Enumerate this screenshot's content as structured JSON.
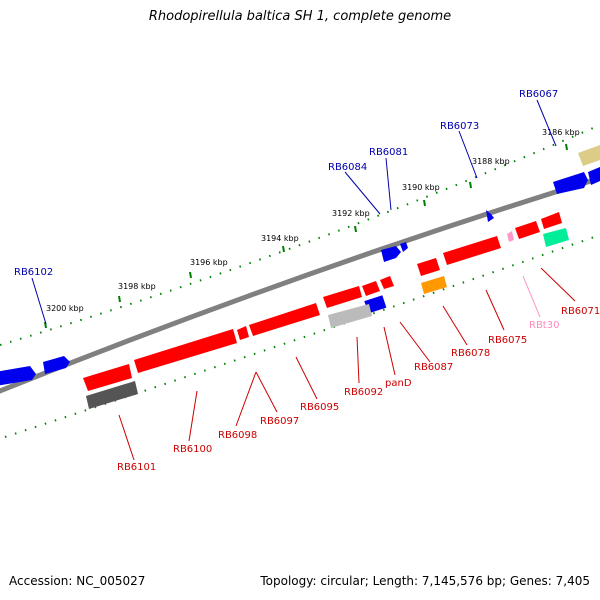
{
  "title": "Rhodopirellula baltica SH 1, complete genome",
  "footer": {
    "accession": "Accession: NC_005027",
    "summary": "Topology: circular; Length: 7,145,576 bp; Genes: 7,405"
  },
  "colors": {
    "backbone": "#808080",
    "forward_gene": "#0000ff",
    "reverse_gene": "#ff0000",
    "gray_feature": "#555555",
    "light_gray_feature": "#bbbbbb",
    "orange_feature": "#ff9900",
    "green_feature": "#00ee99",
    "pink_feature": "#ff99cc",
    "tan_feature": "#ddcc88",
    "tick_dots": "#008000",
    "forward_label": "#0000aa",
    "reverse_label": "#cc0000",
    "rna_label": "#ff88bb"
  },
  "ruler": {
    "ticks": [
      "3200 kbp",
      "3198 kbp",
      "3196 kbp",
      "3194 kbp",
      "3192 kbp",
      "3190 kbp",
      "3188 kbp",
      "3186 kbp"
    ]
  },
  "labels": {
    "forward": [
      "RB6102",
      "RB6084",
      "RB6081",
      "RB6073",
      "RB6067"
    ],
    "reverse": [
      "RB6101",
      "RB6100",
      "RB6098",
      "RB6097",
      "RB6095",
      "RB6092",
      "panD",
      "RB6087",
      "RB6078",
      "RB6075",
      "RB6071"
    ],
    "rna": [
      "RBt30"
    ]
  }
}
